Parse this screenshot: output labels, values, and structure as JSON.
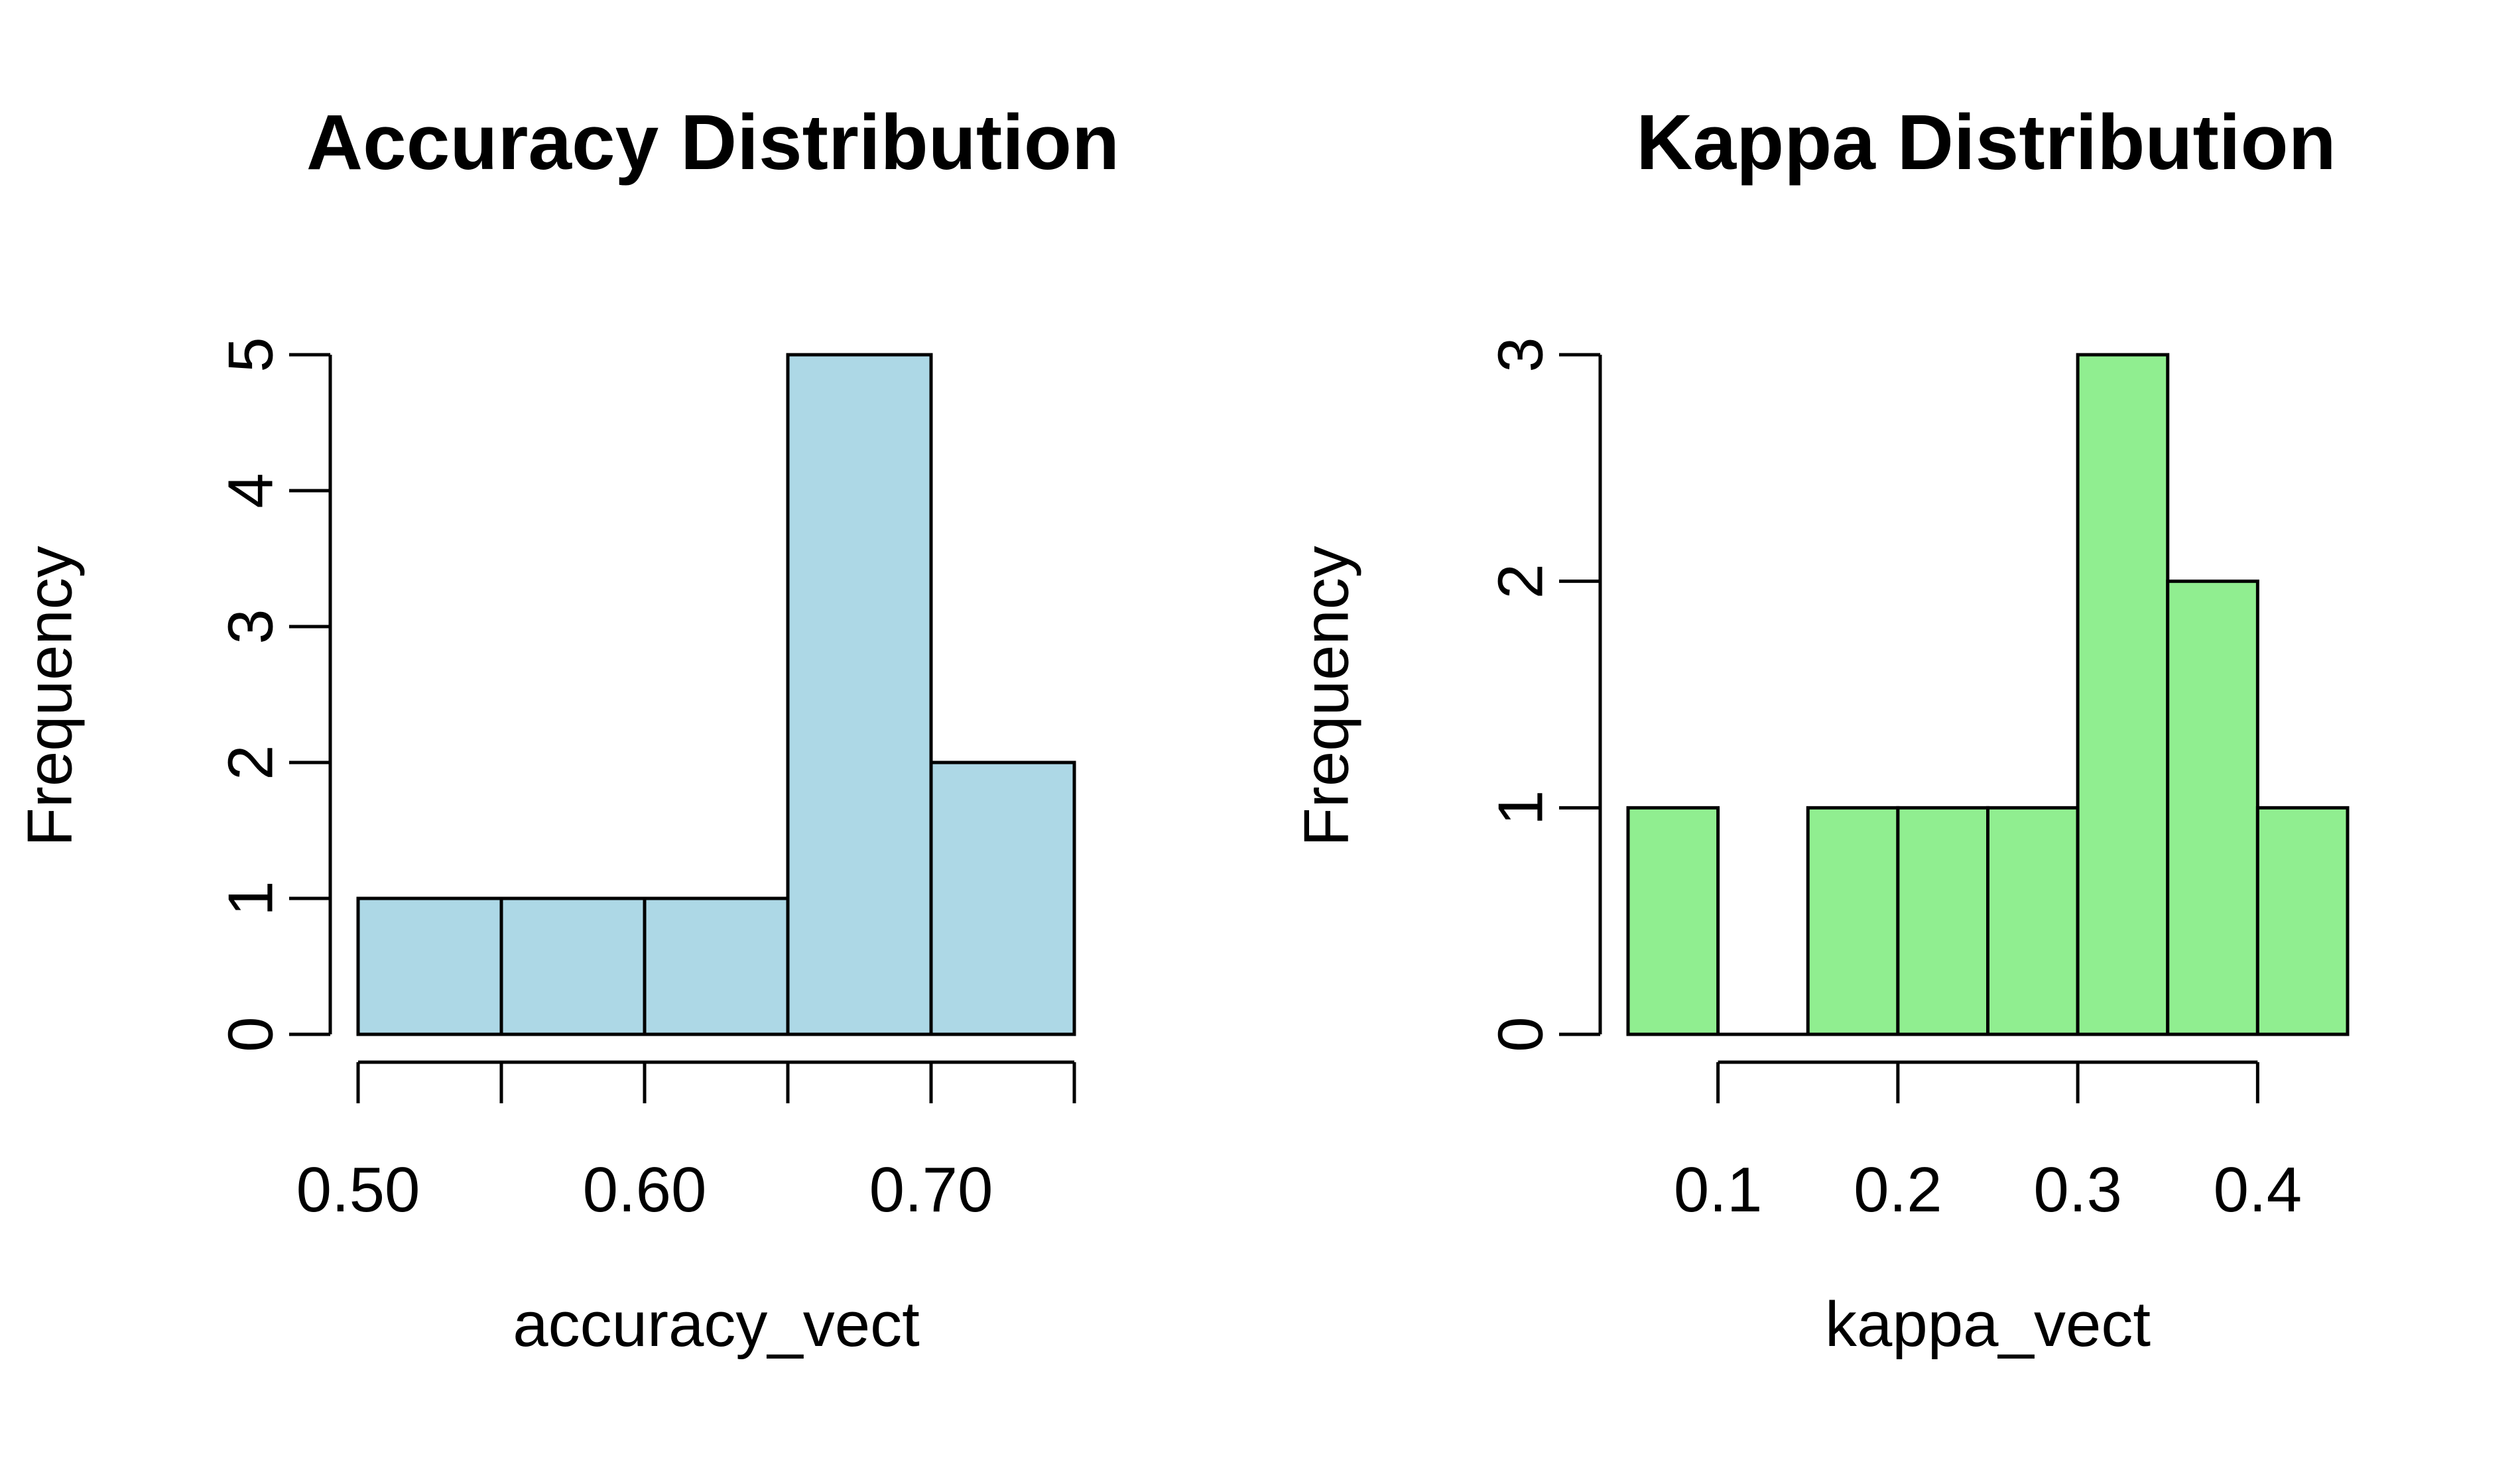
{
  "chart_data": [
    {
      "type": "bar",
      "title": "Accuracy Distribution",
      "xlabel": "accuracy_vect",
      "ylabel": "Frequency",
      "bar_color": "#add8e6",
      "bins": [
        {
          "start": 0.5,
          "end": 0.55,
          "count": 1
        },
        {
          "start": 0.55,
          "end": 0.6,
          "count": 1
        },
        {
          "start": 0.6,
          "end": 0.65,
          "count": 1
        },
        {
          "start": 0.65,
          "end": 0.7,
          "count": 5
        },
        {
          "start": 0.7,
          "end": 0.75,
          "count": 2
        }
      ],
      "xlim": [
        0.5,
        0.75
      ],
      "ylim": [
        0,
        5
      ],
      "x_ticks": [
        0.5,
        0.55,
        0.6,
        0.65,
        0.7,
        0.75
      ],
      "x_tick_labels": [
        {
          "value": 0.5,
          "label": "0.50"
        },
        {
          "value": 0.6,
          "label": "0.60"
        },
        {
          "value": 0.7,
          "label": "0.70"
        }
      ],
      "y_ticks": [
        0,
        1,
        2,
        3,
        4,
        5
      ],
      "y_tick_labels": [
        "0",
        "1",
        "2",
        "3",
        "4",
        "5"
      ],
      "grid": false
    },
    {
      "type": "bar",
      "title": "Kappa Distribution",
      "xlabel": "kappa_vect",
      "ylabel": "Frequency",
      "bar_color": "#90ee90",
      "bins": [
        {
          "start": 0.05,
          "end": 0.1,
          "count": 1
        },
        {
          "start": 0.1,
          "end": 0.15,
          "count": 0
        },
        {
          "start": 0.15,
          "end": 0.2,
          "count": 1
        },
        {
          "start": 0.2,
          "end": 0.25,
          "count": 1
        },
        {
          "start": 0.25,
          "end": 0.3,
          "count": 1
        },
        {
          "start": 0.3,
          "end": 0.35,
          "count": 3
        },
        {
          "start": 0.35,
          "end": 0.4,
          "count": 2
        },
        {
          "start": 0.4,
          "end": 0.45,
          "count": 1
        }
      ],
      "xlim": [
        0.05,
        0.45
      ],
      "ylim": [
        0,
        3
      ],
      "x_ticks": [
        0.1,
        0.2,
        0.3,
        0.4
      ],
      "x_tick_labels": [
        {
          "value": 0.1,
          "label": "0.1"
        },
        {
          "value": 0.2,
          "label": "0.2"
        },
        {
          "value": 0.3,
          "label": "0.3"
        },
        {
          "value": 0.4,
          "label": "0.4"
        }
      ],
      "y_ticks": [
        0,
        1,
        2,
        3
      ],
      "y_tick_labels": [
        "0",
        "1",
        "2",
        "3"
      ],
      "grid": false
    }
  ]
}
